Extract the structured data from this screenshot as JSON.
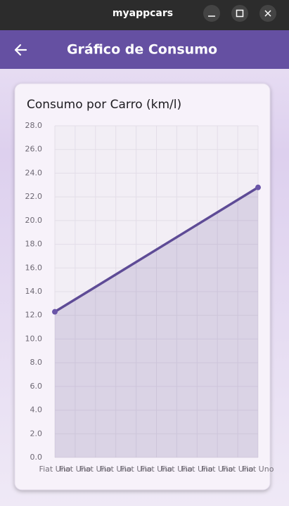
{
  "window": {
    "title": "myappcars"
  },
  "app_bar": {
    "title": "Gráfico de Consumo"
  },
  "chart_data": {
    "type": "line",
    "title": "Consumo por Carro (km/l)",
    "x": [
      0,
      10
    ],
    "series": [
      {
        "color": "#5e4b96",
        "values": [
          12.3,
          22.8
        ]
      }
    ],
    "xlim": [
      0,
      10
    ],
    "xticks": [
      {
        "value": 0,
        "label": "Fiat Uno"
      },
      {
        "value": 1,
        "label": "Fiat Uno"
      },
      {
        "value": 2,
        "label": "Fiat Uno"
      },
      {
        "value": 3,
        "label": "Fiat Uno"
      },
      {
        "value": 4,
        "label": "Fiat Uno"
      },
      {
        "value": 5,
        "label": "Fiat Uno"
      },
      {
        "value": 6,
        "label": "Fiat Uno"
      },
      {
        "value": 7,
        "label": "Fiat Uno"
      },
      {
        "value": 8,
        "label": "Fiat Uno"
      },
      {
        "value": 9,
        "label": "Fiat Uno"
      },
      {
        "value": 10,
        "label": "Fiat Uno"
      }
    ],
    "ylim": [
      0,
      28
    ],
    "yticks": [
      {
        "value": 0,
        "label": "0.0"
      },
      {
        "value": 2,
        "label": "2.0"
      },
      {
        "value": 4,
        "label": "4.0"
      },
      {
        "value": 6,
        "label": "6.0"
      },
      {
        "value": 8,
        "label": "8.0"
      },
      {
        "value": 10,
        "label": "10.0"
      },
      {
        "value": 12,
        "label": "12.0"
      },
      {
        "value": 14,
        "label": "14.0"
      },
      {
        "value": 16,
        "label": "16.0"
      },
      {
        "value": 18,
        "label": "18.0"
      },
      {
        "value": 20,
        "label": "20.0"
      },
      {
        "value": 22,
        "label": "22.0"
      },
      {
        "value": 24,
        "label": "24.0"
      },
      {
        "value": 26,
        "label": "26.0"
      },
      {
        "value": 28,
        "label": "28.0"
      }
    ],
    "grid": true,
    "area": true
  }
}
